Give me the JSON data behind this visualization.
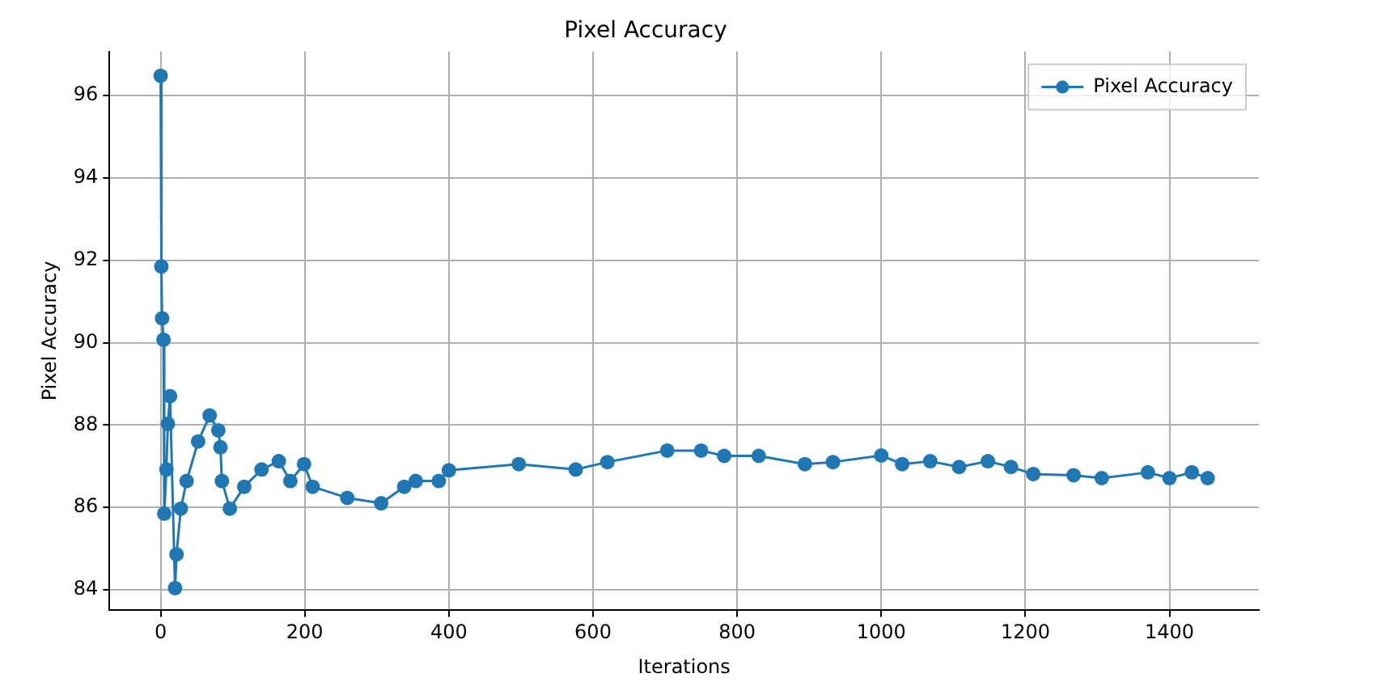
{
  "chart_data": {
    "type": "line",
    "title": "Pixel Accuracy",
    "xlabel": "Iterations",
    "ylabel": "Pixel Accuracy",
    "x": [
      0,
      1,
      2,
      4,
      5,
      8,
      10,
      13,
      20,
      22,
      28,
      36,
      52,
      68,
      80,
      83,
      85,
      96,
      116,
      140,
      164,
      180,
      199,
      211,
      259,
      306,
      338,
      354,
      386,
      400,
      497,
      576,
      620,
      703,
      750,
      782,
      830,
      894,
      933,
      1000,
      1029,
      1068,
      1108,
      1148,
      1180,
      1211,
      1267,
      1306,
      1370,
      1400,
      1431,
      1453
    ],
    "series": [
      {
        "name": "Pixel Accuracy",
        "color": "#1f77b4",
        "values": [
          96.48,
          91.85,
          90.59,
          90.07,
          85.85,
          86.92,
          88.03,
          88.7,
          84.04,
          84.86,
          85.97,
          86.64,
          87.6,
          88.23,
          87.87,
          87.46,
          86.64,
          85.97,
          86.5,
          86.92,
          87.12,
          86.64,
          87.05,
          86.5,
          86.23,
          86.1,
          86.5,
          86.64,
          86.64,
          86.9,
          87.05,
          86.92,
          87.1,
          87.38,
          87.38,
          87.25,
          87.25,
          87.05,
          87.1,
          87.26,
          87.05,
          87.12,
          86.98,
          87.12,
          86.98,
          86.81,
          86.78,
          86.71,
          86.85,
          86.71,
          86.85,
          86.71
        ]
      }
    ],
    "xlim": [
      -71,
      1524
    ],
    "ylim": [
      83.5,
      97.07
    ],
    "xticks": [
      0,
      200,
      400,
      600,
      800,
      1000,
      1200,
      1400
    ],
    "yticks": [
      84,
      86,
      88,
      90,
      92,
      94,
      96
    ],
    "grid": true,
    "legend": "top right",
    "marker": "circle",
    "line_style": "solid"
  }
}
